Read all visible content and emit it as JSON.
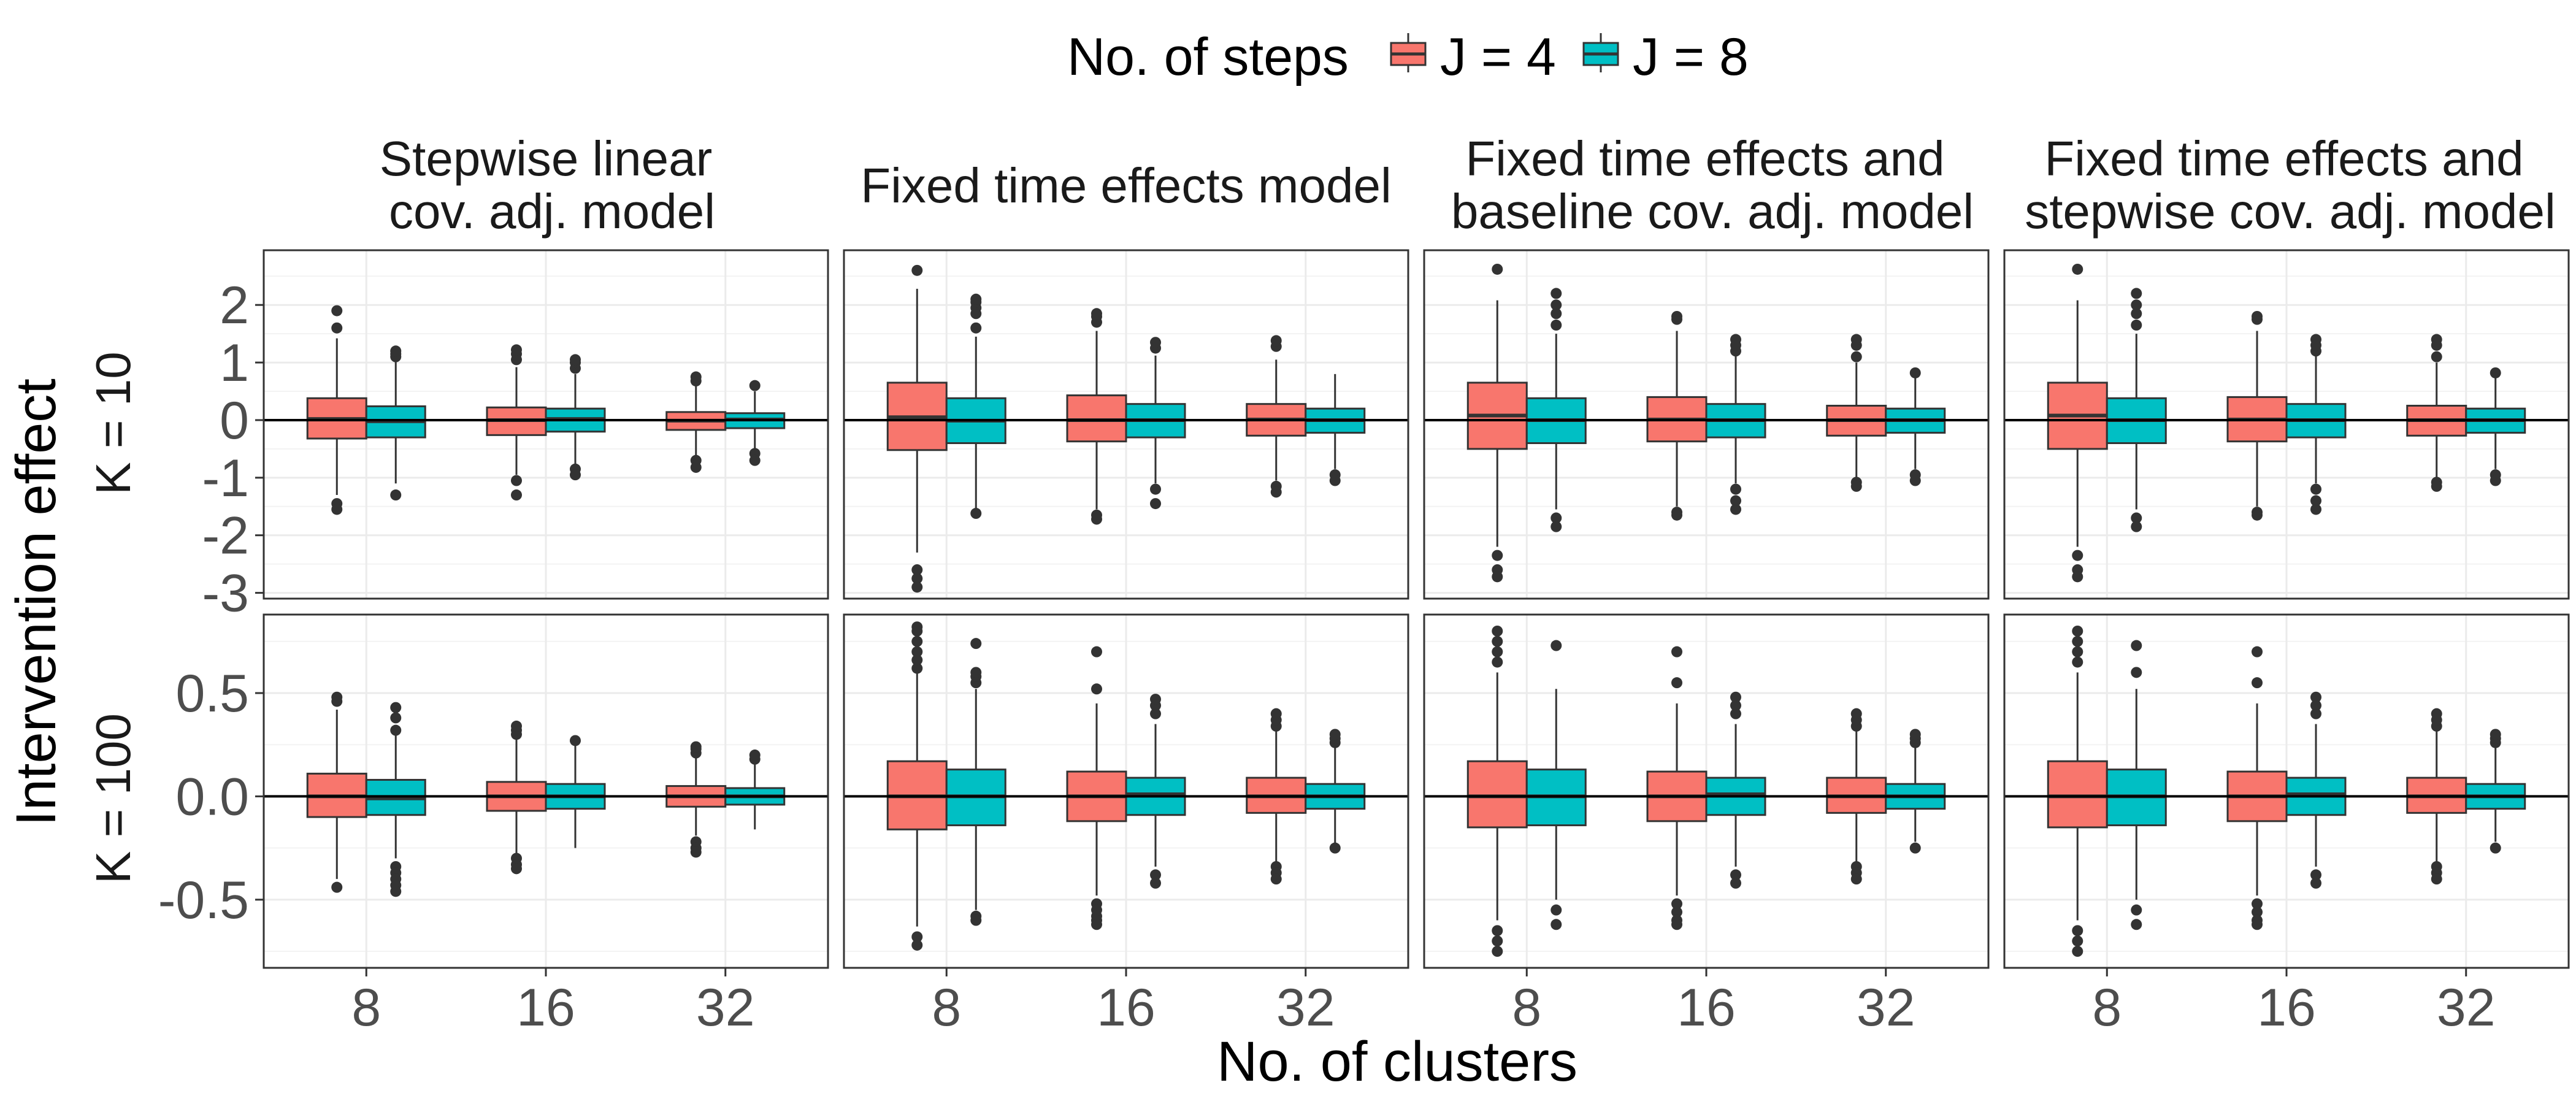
{
  "legend": {
    "title": "No. of steps",
    "items": [
      {
        "label": "J = 4",
        "color": "#F8766D"
      },
      {
        "label": "J = 8",
        "color": "#00BFC4"
      }
    ]
  },
  "axes": {
    "x_title": "No. of clusters",
    "y_title": "Intervention effect"
  },
  "chart_data": {
    "type": "boxplot",
    "facet_columns": [
      [
        "Stepwise linear",
        "cov. adj. model"
      ],
      [
        "Fixed time effects model"
      ],
      [
        "Fixed time effects and",
        "baseline cov. adj. model"
      ],
      [
        "Fixed time effects and",
        "stepwise cov. adj. model"
      ]
    ],
    "facet_rows": [
      {
        "label": "K = 10",
        "ylim": [
          -3.1,
          2.95
        ],
        "ticks": [
          2,
          1,
          0,
          -1,
          -2,
          -3
        ],
        "tick_labels": [
          "2",
          "1",
          "0",
          "-1",
          "-2",
          "-3"
        ]
      },
      {
        "label": "K = 100",
        "ylim": [
          -0.83,
          0.88
        ],
        "ticks": [
          0.5,
          0.0,
          -0.5
        ],
        "tick_labels": [
          "0.5",
          "0.0",
          "-0.5"
        ]
      }
    ],
    "categories": [
      "8",
      "16",
      "32"
    ],
    "series": [
      {
        "name": "J = 4",
        "color": "#F8766D"
      },
      {
        "name": "J = 8",
        "color": "#00BFC4"
      }
    ],
    "boxes": [
      [
        [
          [
            {
              "q1": -0.32,
              "med": 0.02,
              "q3": 0.38,
              "lo": -1.3,
              "hi": 1.42,
              "out": [
                -1.45,
                -1.55,
                1.6,
                1.9
              ]
            },
            {
              "q1": -0.3,
              "med": -0.02,
              "q3": 0.24,
              "lo": -1.1,
              "hi": 1.02,
              "out": [
                -1.3,
                1.1,
                1.15,
                1.2
              ]
            }
          ],
          [
            {
              "q1": -0.26,
              "med": 0.0,
              "q3": 0.22,
              "lo": -0.95,
              "hi": 0.92,
              "out": [
                -1.05,
                -1.3,
                1.05,
                1.15,
                1.22
              ]
            },
            {
              "q1": -0.2,
              "med": 0.02,
              "q3": 0.2,
              "lo": -0.8,
              "hi": 0.8,
              "out": [
                -0.85,
                -0.95,
                0.9,
                1.0,
                1.05
              ]
            }
          ],
          [
            {
              "q1": -0.17,
              "med": -0.01,
              "q3": 0.14,
              "lo": -0.62,
              "hi": 0.6,
              "out": [
                -0.7,
                -0.82,
                0.68,
                0.75
              ]
            },
            {
              "q1": -0.14,
              "med": 0.01,
              "q3": 0.12,
              "lo": -0.5,
              "hi": 0.5,
              "out": [
                -0.58,
                -0.7,
                0.6
              ]
            }
          ]
        ],
        [
          [
            {
              "q1": -0.52,
              "med": 0.05,
              "q3": 0.65,
              "lo": -2.3,
              "hi": 2.28,
              "out": [
                -2.6,
                -2.75,
                -2.9,
                2.6
              ]
            },
            {
              "q1": -0.4,
              "med": -0.01,
              "q3": 0.38,
              "lo": -1.55,
              "hi": 1.45,
              "out": [
                -1.62,
                1.6,
                1.85,
                1.95,
                2.05,
                2.1
              ]
            }
          ],
          [
            {
              "q1": -0.37,
              "med": 0.0,
              "q3": 0.43,
              "lo": -1.55,
              "hi": 1.55,
              "out": [
                -1.65,
                -1.72,
                1.7,
                1.8,
                1.85
              ]
            },
            {
              "q1": -0.3,
              "med": 0.0,
              "q3": 0.28,
              "lo": -1.1,
              "hi": 1.12,
              "out": [
                -1.2,
                -1.45,
                1.25,
                1.35
              ]
            }
          ],
          [
            {
              "q1": -0.27,
              "med": 0.01,
              "q3": 0.28,
              "lo": -1.05,
              "hi": 1.05,
              "out": [
                -1.15,
                -1.25,
                1.28,
                1.38
              ]
            },
            {
              "q1": -0.22,
              "med": 0.0,
              "q3": 0.2,
              "lo": -0.85,
              "hi": 0.8,
              "out": [
                -0.95,
                -1.05
              ]
            }
          ]
        ],
        [
          [
            {
              "q1": -0.5,
              "med": 0.08,
              "q3": 0.65,
              "lo": -2.2,
              "hi": 2.08,
              "out": [
                -2.35,
                -2.6,
                -2.72,
                2.62
              ]
            },
            {
              "q1": -0.4,
              "med": 0.0,
              "q3": 0.38,
              "lo": -1.55,
              "hi": 1.5,
              "out": [
                -1.7,
                -1.85,
                1.65,
                1.85,
                2.0,
                2.2
              ]
            }
          ],
          [
            {
              "q1": -0.37,
              "med": 0.01,
              "q3": 0.4,
              "lo": -1.5,
              "hi": 1.55,
              "out": [
                -1.6,
                -1.65,
                1.75,
                1.8
              ]
            },
            {
              "q1": -0.3,
              "med": 0.0,
              "q3": 0.28,
              "lo": -1.1,
              "hi": 1.15,
              "out": [
                -1.2,
                -1.4,
                -1.55,
                1.2,
                1.3,
                1.4
              ]
            }
          ],
          [
            {
              "q1": -0.27,
              "med": 0.0,
              "q3": 0.25,
              "lo": -1.0,
              "hi": 1.0,
              "out": [
                -1.08,
                -1.15,
                1.1,
                1.3,
                1.4
              ]
            },
            {
              "q1": -0.22,
              "med": 0.0,
              "q3": 0.2,
              "lo": -0.85,
              "hi": 0.8,
              "out": [
                -0.95,
                -1.05,
                0.82
              ]
            }
          ]
        ],
        [
          [
            {
              "q1": -0.5,
              "med": 0.08,
              "q3": 0.65,
              "lo": -2.2,
              "hi": 2.08,
              "out": [
                -2.35,
                -2.6,
                -2.72,
                2.62
              ]
            },
            {
              "q1": -0.4,
              "med": 0.0,
              "q3": 0.38,
              "lo": -1.55,
              "hi": 1.5,
              "out": [
                -1.7,
                -1.85,
                1.65,
                1.85,
                2.0,
                2.2
              ]
            }
          ],
          [
            {
              "q1": -0.37,
              "med": 0.01,
              "q3": 0.4,
              "lo": -1.5,
              "hi": 1.55,
              "out": [
                -1.6,
                -1.65,
                1.75,
                1.8
              ]
            },
            {
              "q1": -0.3,
              "med": 0.0,
              "q3": 0.28,
              "lo": -1.1,
              "hi": 1.15,
              "out": [
                -1.2,
                -1.4,
                -1.55,
                1.2,
                1.3,
                1.4
              ]
            }
          ],
          [
            {
              "q1": -0.27,
              "med": 0.0,
              "q3": 0.25,
              "lo": -1.0,
              "hi": 1.0,
              "out": [
                -1.08,
                -1.15,
                1.1,
                1.3,
                1.4
              ]
            },
            {
              "q1": -0.22,
              "med": 0.0,
              "q3": 0.2,
              "lo": -0.85,
              "hi": 0.8,
              "out": [
                -0.95,
                -1.05,
                0.82
              ]
            }
          ]
        ]
      ],
      [
        [
          [
            {
              "q1": -0.1,
              "med": 0.0,
              "q3": 0.11,
              "lo": -0.4,
              "hi": 0.42,
              "out": [
                -0.44,
                0.46,
                0.48
              ]
            },
            {
              "q1": -0.09,
              "med": -0.01,
              "q3": 0.08,
              "lo": -0.3,
              "hi": 0.3,
              "out": [
                -0.34,
                -0.37,
                -0.4,
                -0.43,
                -0.46,
                0.32,
                0.38,
                0.43
              ]
            }
          ],
          [
            {
              "q1": -0.07,
              "med": 0.0,
              "q3": 0.07,
              "lo": -0.28,
              "hi": 0.28,
              "out": [
                -0.3,
                -0.33,
                -0.35,
                0.3,
                0.32,
                0.34
              ]
            },
            {
              "q1": -0.06,
              "med": 0.0,
              "q3": 0.06,
              "lo": -0.25,
              "hi": 0.25,
              "out": [
                0.27
              ]
            }
          ],
          [
            {
              "q1": -0.05,
              "med": 0.0,
              "q3": 0.05,
              "lo": -0.19,
              "hi": 0.19,
              "out": [
                -0.22,
                -0.25,
                -0.27,
                0.21,
                0.23,
                0.24
              ]
            },
            {
              "q1": -0.04,
              "med": 0.0,
              "q3": 0.04,
              "lo": -0.16,
              "hi": 0.16,
              "out": [
                0.18,
                0.2
              ]
            }
          ]
        ],
        [
          [
            {
              "q1": -0.16,
              "med": 0.0,
              "q3": 0.17,
              "lo": -0.63,
              "hi": 0.6,
              "out": [
                -0.68,
                -0.72,
                0.62,
                0.66,
                0.7,
                0.75,
                0.8,
                0.82
              ]
            },
            {
              "q1": -0.14,
              "med": 0.0,
              "q3": 0.13,
              "lo": -0.55,
              "hi": 0.52,
              "out": [
                -0.58,
                -0.6,
                0.55,
                0.58,
                0.6,
                0.74
              ]
            }
          ],
          [
            {
              "q1": -0.12,
              "med": 0.0,
              "q3": 0.12,
              "lo": -0.48,
              "hi": 0.45,
              "out": [
                -0.52,
                -0.55,
                -0.58,
                -0.6,
                -0.62,
                0.52,
                0.7
              ]
            },
            {
              "q1": -0.09,
              "med": 0.01,
              "q3": 0.09,
              "lo": -0.34,
              "hi": 0.35,
              "out": [
                -0.38,
                -0.42,
                0.4,
                0.44,
                0.47
              ]
            }
          ],
          [
            {
              "q1": -0.08,
              "med": 0.0,
              "q3": 0.09,
              "lo": -0.32,
              "hi": 0.32,
              "out": [
                -0.34,
                -0.37,
                -0.4,
                0.34,
                0.37,
                0.4
              ]
            },
            {
              "q1": -0.06,
              "med": 0.0,
              "q3": 0.06,
              "lo": -0.23,
              "hi": 0.24,
              "out": [
                -0.25,
                0.26,
                0.28,
                0.3
              ]
            }
          ]
        ],
        [
          [
            {
              "q1": -0.15,
              "med": 0.0,
              "q3": 0.17,
              "lo": -0.6,
              "hi": 0.6,
              "out": [
                -0.65,
                -0.7,
                -0.75,
                0.65,
                0.7,
                0.75,
                0.8
              ]
            },
            {
              "q1": -0.14,
              "med": 0.0,
              "q3": 0.13,
              "lo": -0.5,
              "hi": 0.52,
              "out": [
                -0.55,
                -0.62,
                0.73
              ]
            }
          ],
          [
            {
              "q1": -0.12,
              "med": 0.0,
              "q3": 0.12,
              "lo": -0.48,
              "hi": 0.45,
              "out": [
                -0.52,
                -0.56,
                -0.6,
                -0.62,
                0.55,
                0.7
              ]
            },
            {
              "q1": -0.09,
              "med": 0.01,
              "q3": 0.09,
              "lo": -0.34,
              "hi": 0.35,
              "out": [
                -0.38,
                -0.42,
                0.4,
                0.44,
                0.48
              ]
            }
          ],
          [
            {
              "q1": -0.08,
              "med": 0.0,
              "q3": 0.09,
              "lo": -0.32,
              "hi": 0.32,
              "out": [
                -0.34,
                -0.37,
                -0.4,
                0.34,
                0.37,
                0.4
              ]
            },
            {
              "q1": -0.06,
              "med": 0.0,
              "q3": 0.06,
              "lo": -0.22,
              "hi": 0.24,
              "out": [
                -0.25,
                0.26,
                0.28,
                0.3
              ]
            }
          ]
        ],
        [
          [
            {
              "q1": -0.15,
              "med": 0.0,
              "q3": 0.17,
              "lo": -0.6,
              "hi": 0.6,
              "out": [
                -0.65,
                -0.7,
                -0.75,
                0.65,
                0.7,
                0.75,
                0.8
              ]
            },
            {
              "q1": -0.14,
              "med": 0.0,
              "q3": 0.13,
              "lo": -0.5,
              "hi": 0.52,
              "out": [
                -0.55,
                -0.62,
                0.6,
                0.73
              ]
            }
          ],
          [
            {
              "q1": -0.12,
              "med": 0.0,
              "q3": 0.12,
              "lo": -0.48,
              "hi": 0.45,
              "out": [
                -0.52,
                -0.56,
                -0.6,
                -0.62,
                0.55,
                0.7
              ]
            },
            {
              "q1": -0.09,
              "med": 0.01,
              "q3": 0.09,
              "lo": -0.34,
              "hi": 0.35,
              "out": [
                -0.38,
                -0.42,
                0.4,
                0.44,
                0.48
              ]
            }
          ],
          [
            {
              "q1": -0.08,
              "med": 0.0,
              "q3": 0.09,
              "lo": -0.32,
              "hi": 0.32,
              "out": [
                -0.34,
                -0.37,
                -0.4,
                0.34,
                0.37,
                0.4
              ]
            },
            {
              "q1": -0.06,
              "med": 0.0,
              "q3": 0.06,
              "lo": -0.22,
              "hi": 0.24,
              "out": [
                -0.25,
                0.26,
                0.28,
                0.3
              ]
            }
          ]
        ]
      ]
    ]
  }
}
